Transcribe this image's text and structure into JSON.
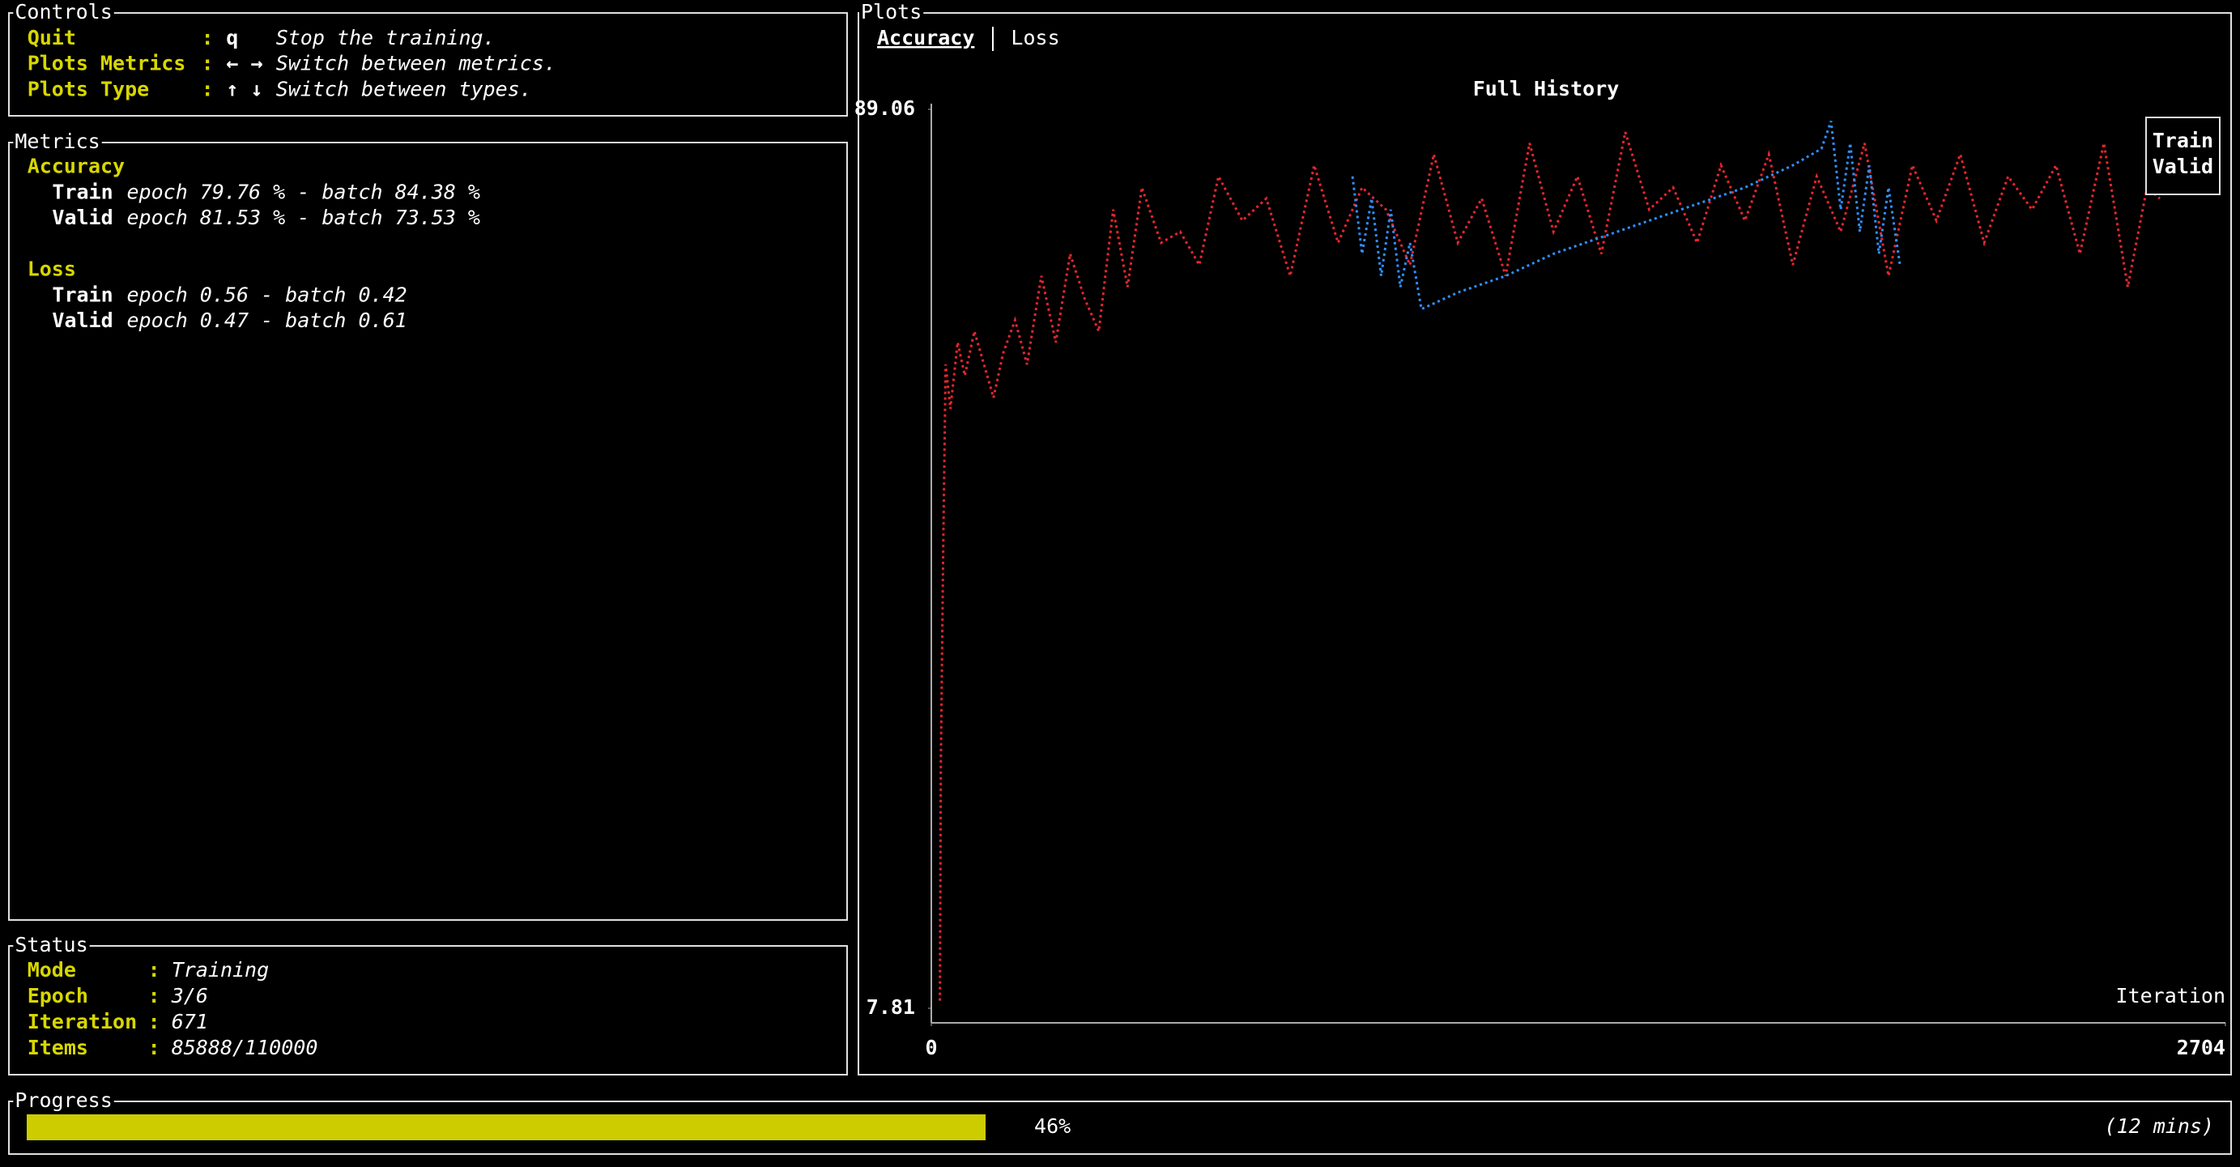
{
  "controls": {
    "title": "Controls",
    "rows": [
      {
        "name": "Quit",
        "separator": ":",
        "key": "q",
        "description": "Stop the training."
      },
      {
        "name": "Plots Metrics",
        "separator": ":",
        "key": "← →",
        "description": "Switch between metrics."
      },
      {
        "name": "Plots Type",
        "separator": ":",
        "key": "↑ ↓",
        "description": "Switch between types."
      }
    ]
  },
  "metrics": {
    "title": "Metrics",
    "groups": [
      {
        "name": "Accuracy",
        "rows": [
          {
            "split": "Train",
            "text": "epoch 79.76 % - batch 84.38 %"
          },
          {
            "split": "Valid",
            "text": "epoch 81.53 % - batch 73.53 %"
          }
        ]
      },
      {
        "name": "Loss",
        "rows": [
          {
            "split": "Train",
            "text": "epoch 0.56 - batch 0.42"
          },
          {
            "split": "Valid",
            "text": "epoch 0.47 - batch 0.61"
          }
        ]
      }
    ]
  },
  "status": {
    "title": "Status",
    "rows": [
      {
        "name": "Mode",
        "separator": ":",
        "value": "Training"
      },
      {
        "name": "Epoch",
        "separator": ":",
        "value": "3/6"
      },
      {
        "name": "Iteration",
        "separator": ":",
        "value": "671"
      },
      {
        "name": "Items",
        "separator": ":",
        "value": "85888/110000"
      }
    ]
  },
  "progress": {
    "title": "Progress",
    "value": 46,
    "value_label": "46%",
    "eta": "(12 mins)"
  },
  "plots": {
    "title": "Plots",
    "tabs": [
      "Accuracy",
      "Loss"
    ],
    "active_tab": 0
  },
  "chart_data": {
    "type": "line",
    "title": "Full History",
    "xlabel": "Iteration",
    "xlim": [
      0,
      2704
    ],
    "xticks": [
      0,
      2704
    ],
    "ylim": [
      7.81,
      89.06
    ],
    "yticks": [
      89.06,
      7.81
    ],
    "legend": "top-right",
    "series": [
      {
        "name": "Train",
        "color": "#e8262d",
        "x": [
          18,
          20,
          25,
          30,
          40,
          55,
          70,
          90,
          110,
          130,
          150,
          175,
          200,
          230,
          260,
          290,
          320,
          350,
          380,
          410,
          440,
          480,
          520,
          560,
          600,
          650,
          700,
          750,
          800,
          850,
          900,
          950,
          1000,
          1050,
          1100,
          1150,
          1200,
          1250,
          1300,
          1350,
          1400,
          1450,
          1500,
          1550,
          1600,
          1650,
          1700,
          1750,
          1800,
          1850,
          1900,
          1950,
          2000,
          2050,
          2100,
          2150,
          2200,
          2250,
          2300,
          2350,
          2400,
          2450,
          2500,
          2540,
          2567
        ],
        "values": [
          8.5,
          30,
          50,
          66,
          62,
          68,
          65,
          69,
          66,
          63,
          67,
          70,
          66,
          74,
          68,
          76,
          72,
          69,
          80,
          73,
          82,
          77,
          78,
          75,
          83,
          79,
          81,
          74,
          84,
          77,
          82,
          80,
          75,
          85,
          77,
          81,
          74,
          86,
          78,
          83,
          76,
          87,
          80,
          82,
          77,
          84,
          79,
          85,
          75,
          83,
          78,
          86,
          74,
          84,
          79,
          85,
          77,
          83,
          80,
          84,
          76,
          86,
          73,
          82,
          81
        ]
      },
      {
        "name": "Valid",
        "color": "#2f8fff",
        "x": [
          880,
          900,
          920,
          940,
          960,
          980,
          1000,
          1024,
          1100,
          1200,
          1300,
          1400,
          1500,
          1600,
          1700,
          1800,
          1860,
          1880,
          1900,
          1920,
          1940,
          1960,
          1980,
          2000,
          2024
        ],
        "values": [
          83,
          76,
          81,
          74,
          80,
          73,
          77,
          71,
          72.5,
          74,
          76,
          77.5,
          79,
          80.5,
          82,
          84,
          85.5,
          88,
          80,
          86,
          78,
          84,
          76,
          82,
          75
        ]
      }
    ]
  }
}
